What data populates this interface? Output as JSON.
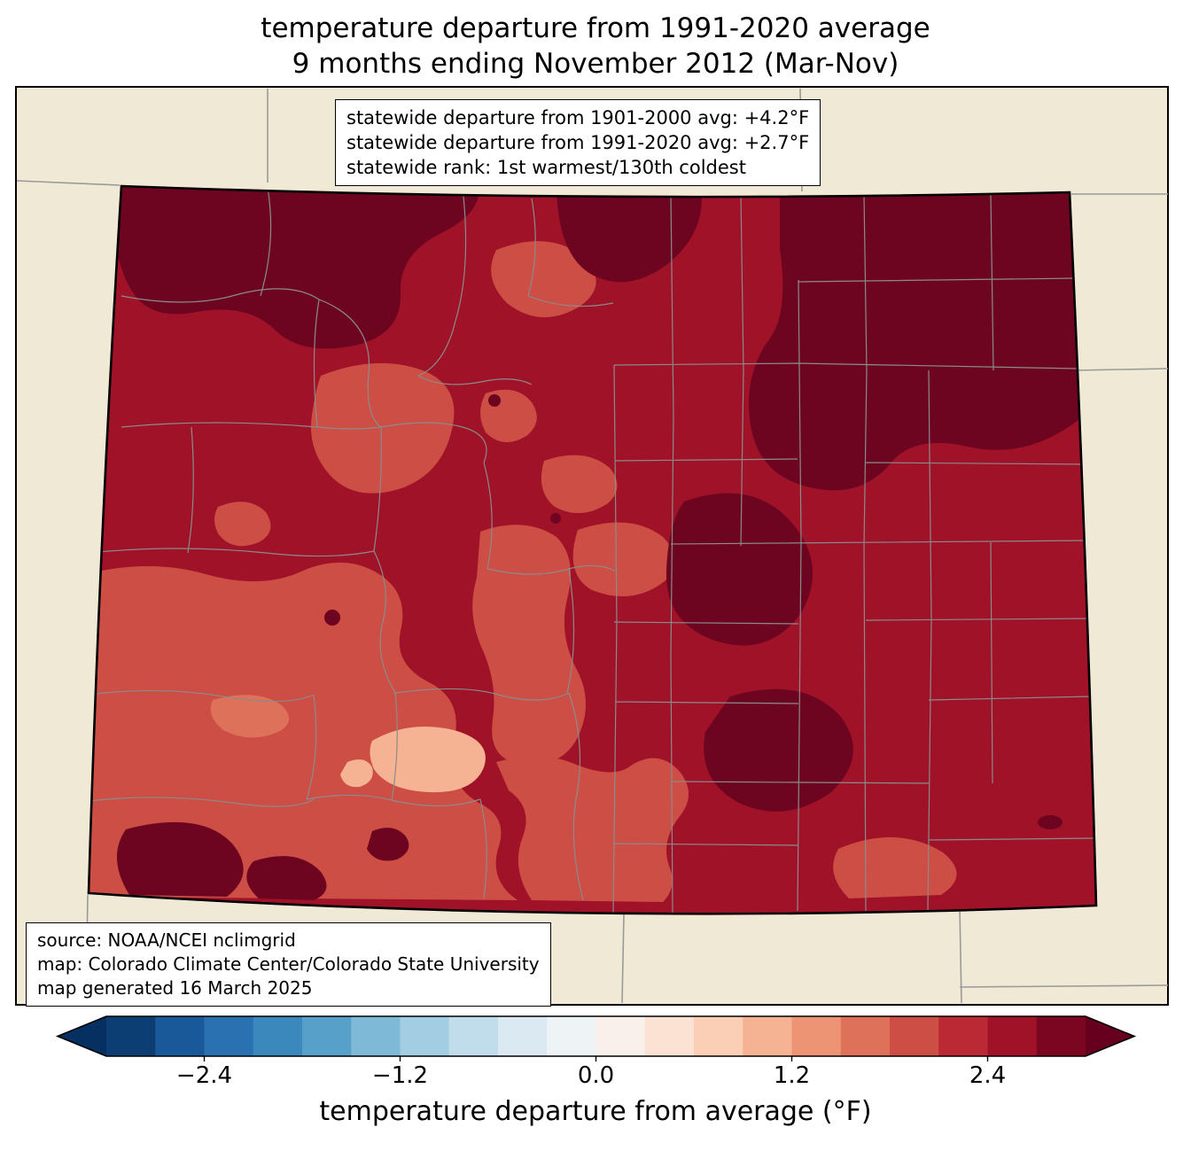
{
  "title": {
    "line1": "temperature departure from 1991-2020 average",
    "line2": "9 months ending November 2012 (Mar-Nov)"
  },
  "stats_box": {
    "line1": "statewide departure from 1901-2000 avg: +4.2°F",
    "line2": "statewide departure from 1991-2020 avg: +2.7°F",
    "line3": "statewide rank: 1st warmest/130th coldest"
  },
  "source_box": {
    "line1": "source: NOAA/NCEI nclimgrid",
    "line2": "map: Colorado Climate Center/Colorado State University",
    "line3": "map generated 16 March 2025"
  },
  "colorbar": {
    "label": "temperature departure from average (°F)",
    "range": [
      -3.0,
      3.0
    ],
    "ticks": [
      {
        "value": -2.4,
        "label": "−2.4"
      },
      {
        "value": -1.2,
        "label": "−1.2"
      },
      {
        "value": 0.0,
        "label": "0.0"
      },
      {
        "value": 1.2,
        "label": "1.2"
      },
      {
        "value": 2.4,
        "label": "2.4"
      }
    ],
    "under_color": "#053061",
    "over_color": "#67001f",
    "segments": [
      {
        "from": -3.0,
        "to": -2.7,
        "color": "#0c3e74"
      },
      {
        "from": -2.7,
        "to": -2.4,
        "color": "#1a5999"
      },
      {
        "from": -2.4,
        "to": -2.1,
        "color": "#2a71b2"
      },
      {
        "from": -2.1,
        "to": -1.8,
        "color": "#3b88bd"
      },
      {
        "from": -1.8,
        "to": -1.5,
        "color": "#57a0ca"
      },
      {
        "from": -1.5,
        "to": -1.2,
        "color": "#7eb9d7"
      },
      {
        "from": -1.2,
        "to": -0.9,
        "color": "#a2cde3"
      },
      {
        "from": -0.9,
        "to": -0.6,
        "color": "#c1ddec"
      },
      {
        "from": -0.6,
        "to": -0.3,
        "color": "#dbeaf2"
      },
      {
        "from": -0.3,
        "to": 0.0,
        "color": "#eef3f5"
      },
      {
        "from": 0.0,
        "to": 0.3,
        "color": "#f9f0eb"
      },
      {
        "from": 0.3,
        "to": 0.6,
        "color": "#fce2d3"
      },
      {
        "from": 0.6,
        "to": 0.9,
        "color": "#fbceb6"
      },
      {
        "from": 0.9,
        "to": 1.2,
        "color": "#f6b393"
      },
      {
        "from": 1.2,
        "to": 1.5,
        "color": "#ed9475"
      },
      {
        "from": 1.5,
        "to": 1.8,
        "color": "#de715a"
      },
      {
        "from": 1.8,
        "to": 2.1,
        "color": "#cd4e45"
      },
      {
        "from": 2.1,
        "to": 2.4,
        "color": "#bb2a34"
      },
      {
        "from": 2.4,
        "to": 2.7,
        "color": "#9f1228"
      },
      {
        "from": 2.7,
        "to": 3.0,
        "color": "#7a0622"
      }
    ]
  },
  "map": {
    "region": "Colorado",
    "background_color": "#efe9d6",
    "figure_background": "#ffffff",
    "axes_border_color": "#000000",
    "state_border_color": "#000000",
    "county_line_color": "#8b8b8b",
    "neighbor_line_color": "#9a9a9a",
    "fills": {
      "base": "#9f1228",
      "maroon": "#6d0521",
      "salmon": "#cd4e45",
      "light_salmon": "#de715a",
      "peach": "#f6b393"
    }
  }
}
